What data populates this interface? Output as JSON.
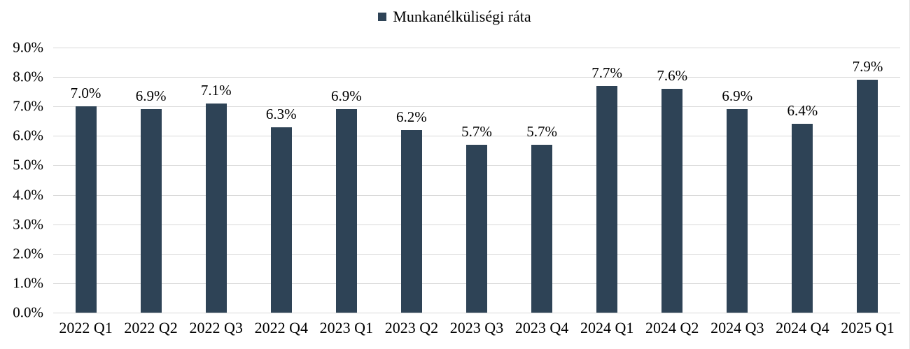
{
  "chart_data": {
    "type": "bar",
    "title": "",
    "legend": "Munkanélküliségi ráta",
    "legend_position": "top-center",
    "categories": [
      "2022 Q1",
      "2022 Q2",
      "2022 Q3",
      "2022 Q4",
      "2023 Q1",
      "2023 Q2",
      "2023 Q3",
      "2023 Q4",
      "2024 Q1",
      "2024 Q2",
      "2024 Q3",
      "2024 Q4",
      "2025 Q1"
    ],
    "values": [
      7.0,
      6.9,
      7.1,
      6.3,
      6.9,
      6.2,
      5.7,
      5.7,
      7.7,
      7.6,
      6.9,
      6.4,
      7.9
    ],
    "labels": [
      "7.0%",
      "6.9%",
      "7.1%",
      "6.3%",
      "6.9%",
      "6.2%",
      "5.7%",
      "5.7%",
      "7.7%",
      "7.6%",
      "6.9%",
      "6.4%",
      "7.9%"
    ],
    "y_ticks": [
      "0.0%",
      "1.0%",
      "2.0%",
      "3.0%",
      "4.0%",
      "5.0%",
      "6.0%",
      "7.0%",
      "8.0%",
      "9.0%"
    ],
    "xlabel": "",
    "ylabel": "",
    "ylim": [
      0,
      9
    ],
    "grid": "horizontal",
    "bar_color": "#2e4356",
    "gridline_color": "#d9d9d9",
    "text_color": "#000000"
  }
}
